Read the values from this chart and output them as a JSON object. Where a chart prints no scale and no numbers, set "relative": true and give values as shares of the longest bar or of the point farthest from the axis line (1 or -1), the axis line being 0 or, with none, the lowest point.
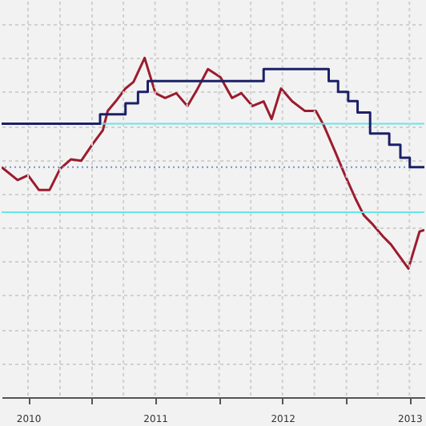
{
  "chart_data": {
    "type": "line",
    "relative": true,
    "xlim": [
      "2010-04-16",
      "2013-08-13"
    ],
    "xticks": [
      {
        "value": "2010-07-01",
        "label": "2010"
      },
      {
        "value": "2010-10-01",
        "label": null
      },
      {
        "value": "2011-01-01",
        "label": null
      },
      {
        "value": "2011-04-01",
        "label": null
      },
      {
        "value": "2011-07-01",
        "label": "2011"
      },
      {
        "value": "2011-10-01",
        "label": null
      },
      {
        "value": "2012-01-01",
        "label": null
      },
      {
        "value": "2012-04-01",
        "label": null
      },
      {
        "value": "2012-07-01",
        "label": "2012"
      },
      {
        "value": "2012-10-01",
        "label": null
      },
      {
        "value": "2013-01-01",
        "label": null
      },
      {
        "value": "2013-04-01",
        "label": null
      },
      {
        "value": "2013-07-01",
        "label": "2013"
      }
    ],
    "grid": true,
    "tick_labels": "x",
    "line_style": "solid",
    "series": [
      {
        "type": "line",
        "color": "#9b1c2e",
        "x": [
          "2010-04-16",
          "2010-06-01",
          "2010-07-01",
          "2010-08-01",
          "2010-09-01",
          "2010-10-01",
          "2010-11-01",
          "2010-12-01",
          "2011-01-01",
          "2011-02-01",
          "2011-02-15",
          "2011-03-10",
          "2011-04-07",
          "2011-04-30",
          "2011-06-01",
          "2011-07-02",
          "2011-07-30",
          "2011-08-31",
          "2011-10-02",
          "2011-10-29",
          "2011-11-30",
          "2012-01-05",
          "2012-02-07",
          "2012-03-05",
          "2012-04-06",
          "2012-05-08",
          "2012-05-31",
          "2012-06-27",
          "2012-07-29",
          "2012-09-03",
          "2012-10-05",
          "2012-10-28",
          "2012-11-29",
          "2012-12-26",
          "2013-01-28",
          "2013-02-20",
          "2013-03-15",
          "2013-04-16",
          "2013-05-09",
          "2013-06-28",
          "2013-07-30",
          "2013-08-13"
        ],
        "values": [
          0.678,
          0.64,
          0.654,
          0.611,
          0.611,
          0.673,
          0.701,
          0.697,
          0.744,
          0.787,
          0.844,
          0.872,
          0.91,
          0.929,
          1.0,
          0.896,
          0.882,
          0.896,
          0.858,
          0.905,
          0.967,
          0.943,
          0.882,
          0.896,
          0.858,
          0.872,
          0.82,
          0.91,
          0.872,
          0.844,
          0.844,
          0.801,
          0.725,
          0.659,
          0.583,
          0.536,
          0.512,
          0.474,
          0.45,
          0.379,
          0.488,
          0.493
        ]
      },
      {
        "type": "step",
        "color": "#1c2068",
        "x": [
          "2010-04-16",
          "2011-01-24",
          "2011-04-07",
          "2011-05-13",
          "2011-06-10",
          "2012-05-08",
          "2012-11-11",
          "2012-12-08",
          "2013-01-06",
          "2013-02-02",
          "2013-03-10",
          "2013-05-04",
          "2013-06-05",
          "2013-07-02",
          "2013-08-13"
        ],
        "values": [
          0.806,
          0.834,
          0.866,
          0.9,
          0.932,
          0.967,
          0.932,
          0.9,
          0.873,
          0.839,
          0.777,
          0.744,
          0.706,
          0.678,
          0.678
        ]
      }
    ],
    "ref_lines": [
      {
        "axis": "y",
        "value": 0.806,
        "color": "#66e6e6",
        "line_style": "solid"
      },
      {
        "axis": "y",
        "value": 0.678,
        "color": "#7b8fd6",
        "line_style": "dotted"
      },
      {
        "axis": "y",
        "value": 0.545,
        "color": "#66e6e6",
        "line_style": "solid"
      }
    ]
  }
}
